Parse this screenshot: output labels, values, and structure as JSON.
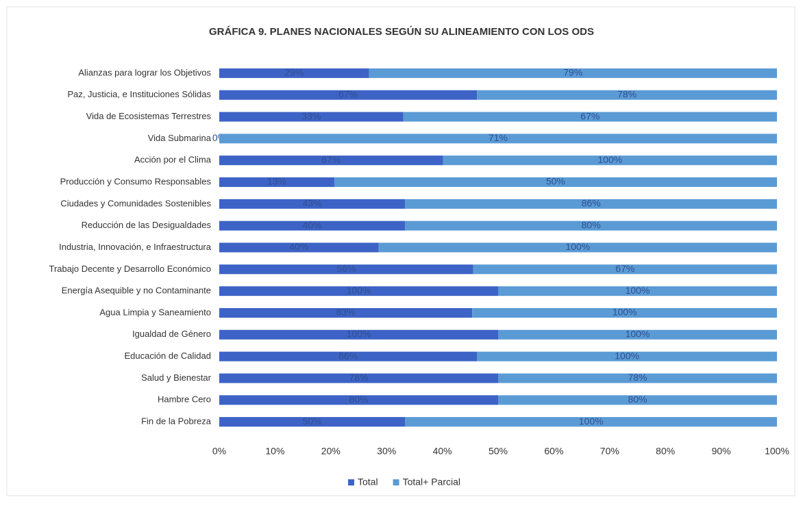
{
  "chart_data": {
    "type": "bar",
    "orientation": "horizontal",
    "stacking": "percent",
    "title": "GRÁFICA 9. PLANES NACIONALES SEGÚN SU ALINEAMIENTO CON LOS ODS",
    "categories": [
      "Alianzas para lograr los Objetivos",
      "Paz, Justicia, e Instituciones Sólidas",
      "Vida de Ecosistemas Terrestres",
      "Vida Submarina",
      "Acción por el Clima",
      "Producción y Consumo Responsables",
      "Ciudades y Comunidades Sostenibles",
      "Reducción de las Desigualdades",
      "Industria, Innovación, e Infraestructura",
      "Trabajo Decente y Desarrollo Económico",
      "Energía Asequible y no Contaminante",
      "Agua Limpia y Saneamiento",
      "Igualdad de Género",
      "Educación de Calidad",
      "Salud y Bienestar",
      "Hambre Cero",
      "Fin de la Pobreza"
    ],
    "series": [
      {
        "name": "Total",
        "color": "#3d63c6",
        "values": [
          29,
          67,
          33,
          0,
          67,
          13,
          43,
          40,
          40,
          56,
          100,
          83,
          100,
          86,
          78,
          80,
          50
        ],
        "value_labels": [
          "29%",
          "67%",
          "33%",
          "0%",
          "67%",
          "13%",
          "43%",
          "40%",
          "40%",
          "56%",
          "100%",
          "83%",
          "100%",
          "86%",
          "78%",
          "80%",
          "50%"
        ]
      },
      {
        "name": "Total+ Parcial",
        "color": "#5b9bd5",
        "values": [
          79,
          78,
          67,
          71,
          100,
          50,
          86,
          80,
          100,
          67,
          100,
          100,
          100,
          100,
          78,
          80,
          100
        ],
        "value_labels": [
          "79%",
          "78%",
          "67%",
          "71%",
          "100%",
          "50%",
          "86%",
          "80%",
          "100%",
          "67%",
          "100%",
          "100%",
          "100%",
          "100%",
          "78%",
          "80%",
          "100%"
        ]
      }
    ],
    "xlim": [
      0,
      100
    ],
    "xticks": [
      {
        "value": 0,
        "label": "0%"
      },
      {
        "value": 10,
        "label": "10%"
      },
      {
        "value": 20,
        "label": "20%"
      },
      {
        "value": 30,
        "label": "30%"
      },
      {
        "value": 40,
        "label": "40%"
      },
      {
        "value": 50,
        "label": "50%"
      },
      {
        "value": 60,
        "label": "60%"
      },
      {
        "value": 70,
        "label": "70%"
      },
      {
        "value": 80,
        "label": "80%"
      },
      {
        "value": 90,
        "label": "90%"
      },
      {
        "value": 100,
        "label": "100%"
      }
    ],
    "legend": "bottom"
  }
}
